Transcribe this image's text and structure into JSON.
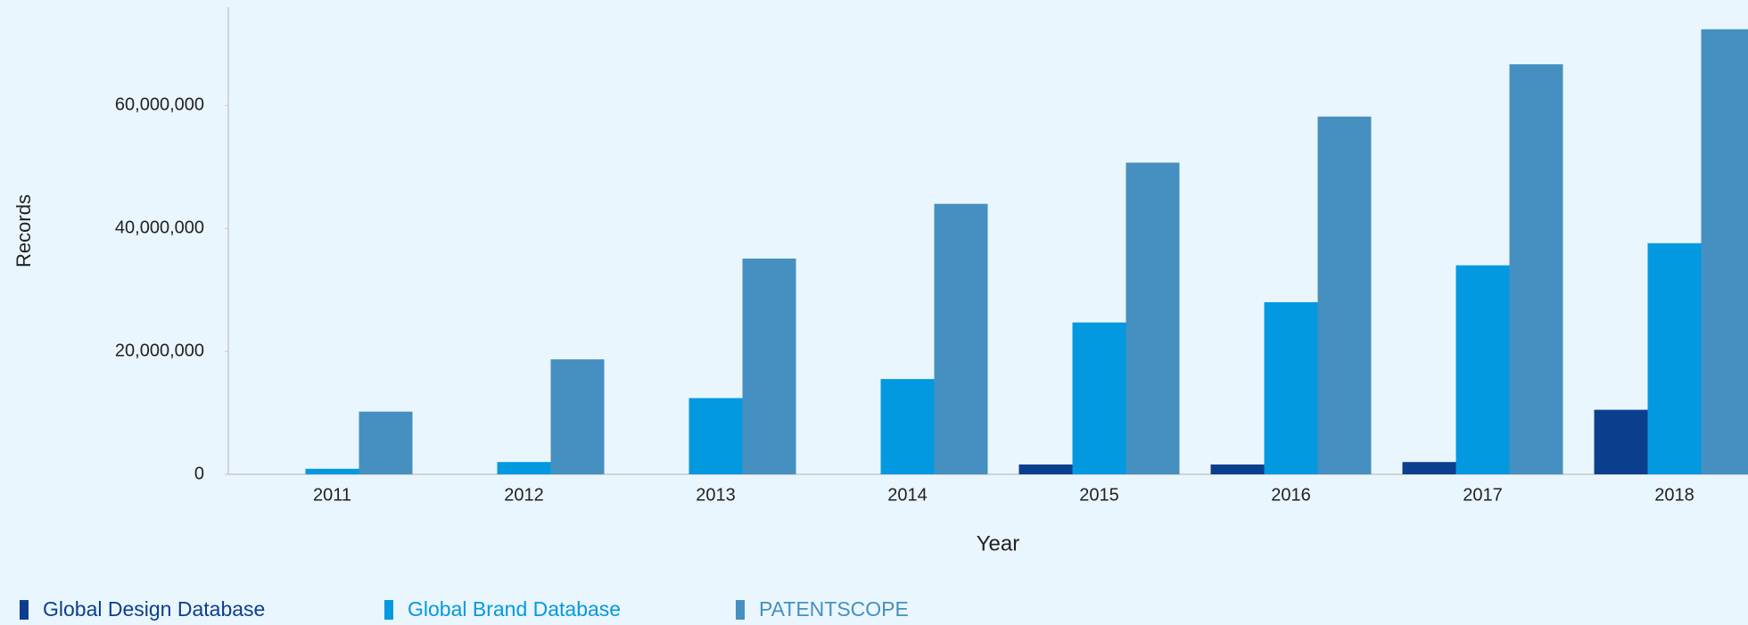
{
  "chart_data": {
    "type": "bar",
    "x_label": "Year",
    "y_label": "Records",
    "categories": [
      "2011",
      "2012",
      "2013",
      "2014",
      "2015",
      "2016",
      "2017",
      "2018"
    ],
    "series": [
      {
        "name": "Global Design Database",
        "color": "#0b3f8e",
        "values": [
          0,
          0,
          0,
          0,
          1600000,
          1600000,
          2000000,
          10500000
        ]
      },
      {
        "name": "Global Brand Database",
        "color": "#0399e0",
        "values": [
          900000,
          2000000,
          12400000,
          15500000,
          24700000,
          28000000,
          34000000,
          37600000
        ]
      },
      {
        "name": "PATENTSCOPE",
        "color": "#4590c0",
        "values": [
          10200000,
          18700000,
          35100000,
          44000000,
          50700000,
          58200000,
          66700000,
          72400000
        ]
      }
    ],
    "ylim": [
      0,
      76000000
    ],
    "yticks": [
      0,
      {
        "value": 20000000,
        "label": "20,000,000"
      },
      {
        "value": 40000000,
        "label": "40,000,000"
      },
      {
        "value": 60000000,
        "label": "60,000,000"
      }
    ],
    "grid": false,
    "legend": "bottom-left"
  }
}
